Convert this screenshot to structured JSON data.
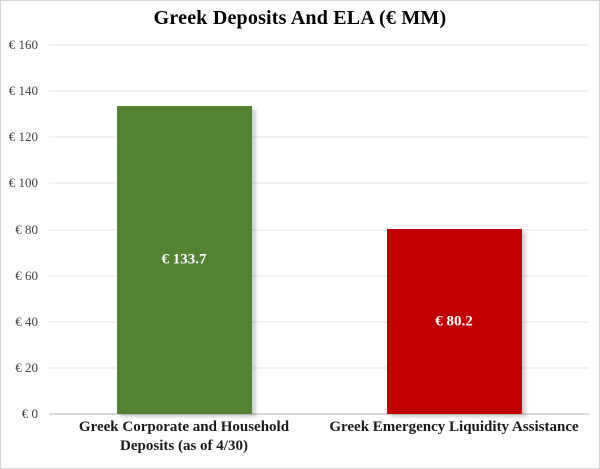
{
  "chart_data": {
    "type": "bar",
    "title": "Greek Deposits And ELA (€ MM)",
    "categories": [
      "Greek Corporate and Household Deposits (as of 4/30)",
      "Greek Emergency Liquidity Assistance"
    ],
    "category_lines": [
      "Greek Corporate and Household\nDeposits (as of 4/30)",
      "Greek Emergency Liquidity Assistance"
    ],
    "values": [
      133.7,
      80.2
    ],
    "bar_value_labels": [
      "€ 133.7",
      "€ 80.2"
    ],
    "bar_colors": [
      "#548235",
      "#C00000"
    ],
    "value_label_color": "#FFFFFF",
    "xlabel": "",
    "ylabel": "",
    "ylim": [
      0,
      160
    ],
    "y_tick_step": 20,
    "y_tick_labels": [
      "€ 0",
      "€ 20",
      "€ 40",
      "€ 60",
      "€ 80",
      "€ 100",
      "€ 120",
      "€ 140",
      "€ 160"
    ],
    "grid": true,
    "legend": false
  }
}
